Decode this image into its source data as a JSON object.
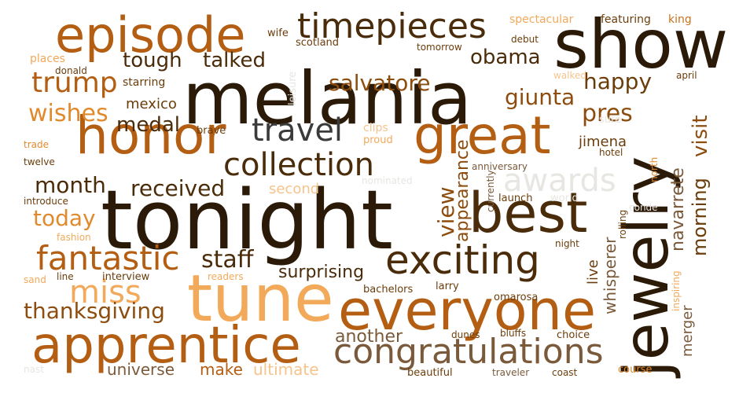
{
  "words": {
    "melania": "melania",
    "tonight": "tonight",
    "jewelry": "jewelry",
    "show": "show",
    "tune": "tune",
    "everyone": "everyone",
    "apprentice": "apprentice",
    "best": "best",
    "great": "great",
    "honor": "honor",
    "episode": "episode",
    "timepieces": "timepieces",
    "exciting": "exciting",
    "congratulations": "congratulations",
    "collection": "collection",
    "travel": "travel",
    "fantastic": "fantastic",
    "miss": "miss",
    "trump": "trump",
    "thanksgiving": "thanksgiving",
    "awards": "awards",
    "tough": "tough",
    "talked": "talked",
    "salvatore": "salvatore",
    "obama": "obama",
    "giunta": "giunta",
    "happy": "happy",
    "pres": "pres",
    "wishes": "wishes",
    "medal": "medal",
    "month": "month",
    "received": "received",
    "today": "today",
    "staff": "staff",
    "view": "view",
    "visit": "visit",
    "morning": "morning",
    "navarrete": "navarrete",
    "whisperer": "whisperer",
    "appearance": "appearance",
    "surprising": "surprising",
    "another": "another",
    "universe": "universe",
    "make": "make",
    "ultimate": "ultimate",
    "second": "second",
    "mexico": "mexico",
    "live": "live",
    "merger": "merger",
    "jimena": "jimena",
    "wife": "wife",
    "scotland": "scotland",
    "tomorrow": "tomorrow",
    "spectacular": "spectacular",
    "featuring": "featuring",
    "king": "king",
    "debut": "debut",
    "places": "places",
    "donald": "donald",
    "starring": "starring",
    "leisure": "leisure",
    "walked": "walked",
    "april": "april",
    "brave": "brave",
    "clips": "clips",
    "proud": "proud",
    "sure": "sure",
    "trade": "trade",
    "twelve": "twelve",
    "anniversary": "anniversary",
    "hotel": "hotel",
    "nominated": "nominated",
    "currently": "currently",
    "introduce": "introduce",
    "launch": "launch",
    "world": "world",
    "north": "north",
    "conde": "conde",
    "fashion": "fashion",
    "rolling": "rolling",
    "night": "night",
    "sand": "sand",
    "line": "line",
    "interview": "interview",
    "readers": "readers",
    "larry": "larry",
    "bachelors": "bachelors",
    "omarosa": "omarosa",
    "inspiring": "inspiring",
    "dunes": "dunes",
    "bluffs": "bluffs",
    "choice": "choice",
    "nast": "nast",
    "beautiful": "beautiful",
    "traveler": "traveler",
    "coast": "coast",
    "course": "course"
  }
}
